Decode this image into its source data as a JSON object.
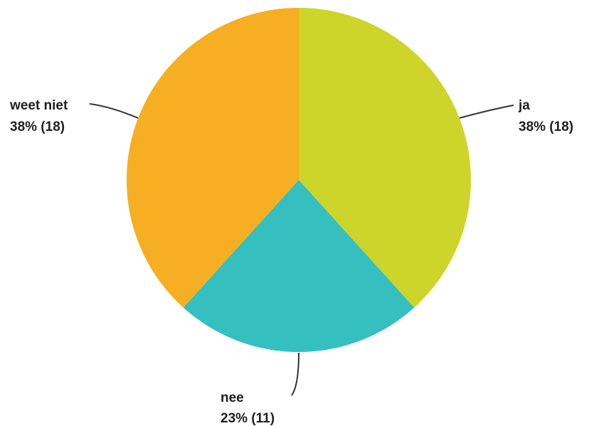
{
  "chart_data": {
    "type": "pie",
    "title": "",
    "slices": [
      {
        "label": "ja",
        "percent_text": "38% (18)",
        "value": 18,
        "color": "#cdd52a"
      },
      {
        "label": "nee",
        "percent_text": "23% (11)",
        "value": 11,
        "color": "#35bfbf"
      },
      {
        "label": "weet niet",
        "percent_text": "38% (18)",
        "value": 18,
        "color": "#f6ae22"
      }
    ],
    "legend": "none"
  }
}
